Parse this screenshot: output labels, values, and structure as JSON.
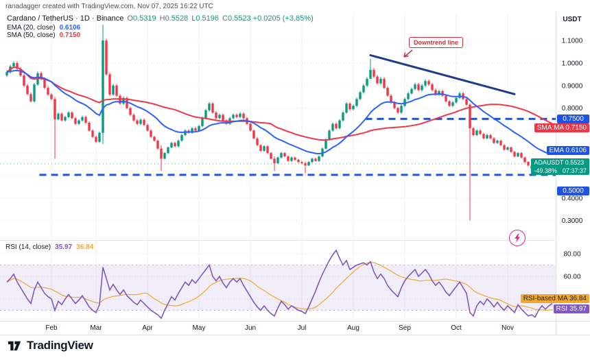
{
  "attribution": "ranadagger created with TradingView.com, Nov 07, 2025 16:22 UTC",
  "header": {
    "symbol_line": "Cardano / TetherUS · 1D · Binance",
    "ohlc": {
      "o_label": "O",
      "o": "0.5319",
      "h_label": "H",
      "h": "0.5528",
      "l_label": "L",
      "l": "0.5196",
      "c_label": "C",
      "c": "0.5523",
      "change": "+0.0205 (+3.85%)"
    }
  },
  "legends": {
    "ema": {
      "label": "EMA (20, close)",
      "value": "0.6106"
    },
    "sma": {
      "label": "SMA (50, close)",
      "value": "0.7150"
    },
    "rsi": {
      "label": "RSI (14, close)",
      "value": "35.97",
      "ma_value": "36.84"
    }
  },
  "badges": {
    "price_upper": "0.7500",
    "sma_badge": {
      "label": "SMA:MA",
      "value": "0.7150"
    },
    "ema_badge": {
      "label": "EMA",
      "value": "0.6106"
    },
    "symbol_badge": {
      "label": "ADAUSDT",
      "value": "0.5523",
      "change": "-49.38%",
      "countdown": "07:37:37"
    },
    "price_lower": "0.5000",
    "rsi_ma_badge": {
      "label": "RSI-based MA",
      "value": "36.84"
    },
    "rsi_badge": {
      "label": "RSI",
      "value": "35.97"
    }
  },
  "annotations": {
    "downtrend_label": "Downtrend line"
  },
  "footer": {
    "logo_text": "TradingView"
  },
  "chart_data": {
    "type": "candlestick",
    "symbol": "ADAUSDT",
    "interval": "1D",
    "exchange": "Binance",
    "colors": {
      "up": "#089981",
      "down": "#f23645",
      "ema": "#2962ff",
      "sma": "#f23645",
      "trendline": "#1e3a8a",
      "level": "#1e53e5",
      "rsi": "#7e57c2",
      "rsi_ma": "#f0a82e",
      "rsi_band": "rgba(126,87,194,0.10)",
      "grid_v": "#eef0f5",
      "grid_h": "#c5c9d3"
    },
    "x_axis": {
      "ticks": [
        {
          "i": 13,
          "label": "Feb"
        },
        {
          "i": 26,
          "label": "Mar"
        },
        {
          "i": 41,
          "label": "Apr"
        },
        {
          "i": 56,
          "label": "May"
        },
        {
          "i": 71,
          "label": "Jun"
        },
        {
          "i": 86,
          "label": "Jul"
        },
        {
          "i": 101,
          "label": "Aug"
        },
        {
          "i": 116,
          "label": "Sep"
        },
        {
          "i": 131,
          "label": "Oct"
        },
        {
          "i": 146,
          "label": "Nov"
        }
      ]
    },
    "y_axis": {
      "currency": "USDT",
      "range": [
        0.235,
        1.225
      ],
      "grid": [
        1.1,
        1.0,
        0.9,
        0.8,
        0.7,
        0.6,
        0.5,
        0.4,
        0.3
      ],
      "ticks": [
        {
          "v": 1.1,
          "label": "1.1000"
        },
        {
          "v": 1.0,
          "label": "1.0000"
        },
        {
          "v": 0.9,
          "label": "0.9000"
        },
        {
          "v": 0.8,
          "label": "0.8000"
        },
        {
          "v": 0.4,
          "label": "0.4000"
        },
        {
          "v": 0.3,
          "label": "0.3000"
        }
      ]
    },
    "rsi_axis": {
      "range": [
        15,
        90
      ],
      "band": [
        30,
        70
      ],
      "ticks": [
        {
          "v": 80,
          "label": "80.00"
        },
        {
          "v": 60,
          "label": "60.00"
        },
        {
          "v": 40,
          "label": "40.00"
        }
      ]
    },
    "candles": {
      "first_open": 0.945,
      "closes": [
        0.96,
        0.985,
        1.0,
        0.975,
        0.945,
        0.9,
        0.862,
        0.83,
        0.905,
        0.955,
        0.93,
        0.89,
        0.86,
        0.84,
        0.75,
        0.775,
        0.745,
        0.76,
        0.78,
        0.755,
        0.73,
        0.745,
        0.76,
        0.735,
        0.7,
        0.672,
        0.65,
        0.69,
        1.1,
        0.95,
        0.86,
        0.9,
        0.855,
        0.82,
        0.845,
        0.8,
        0.77,
        0.745,
        0.73,
        0.748,
        0.725,
        0.7,
        0.672,
        0.655,
        0.62,
        0.575,
        0.6,
        0.625,
        0.645,
        0.63,
        0.655,
        0.68,
        0.7,
        0.69,
        0.71,
        0.7,
        0.72,
        0.755,
        0.79,
        0.82,
        0.78,
        0.755,
        0.77,
        0.745,
        0.73,
        0.755,
        0.77,
        0.76,
        0.775,
        0.755,
        0.73,
        0.7,
        0.665,
        0.635,
        0.61,
        0.63,
        0.6,
        0.575,
        0.555,
        0.58,
        0.6,
        0.585,
        0.565,
        0.58,
        0.57,
        0.56,
        0.555,
        0.545,
        0.56,
        0.575,
        0.565,
        0.585,
        0.62,
        0.66,
        0.7,
        0.73,
        0.71,
        0.745,
        0.78,
        0.82,
        0.795,
        0.81,
        0.84,
        0.87,
        0.9,
        0.93,
        0.97,
        0.94,
        0.91,
        0.93,
        0.89,
        0.855,
        0.825,
        0.8,
        0.78,
        0.81,
        0.84,
        0.865,
        0.885,
        0.905,
        0.88,
        0.9,
        0.92,
        0.905,
        0.88,
        0.86,
        0.875,
        0.855,
        0.83,
        0.81,
        0.825,
        0.845,
        0.865,
        0.84,
        0.815,
        0.71,
        0.68,
        0.7,
        0.685,
        0.665,
        0.68,
        0.665,
        0.645,
        0.655,
        0.635,
        0.615,
        0.625,
        0.605,
        0.585,
        0.6,
        0.58,
        0.56,
        0.545,
        0.53,
        0.515,
        0.528,
        0.54,
        0.532,
        0.545,
        0.5523
      ],
      "wick_overrides": {
        "14": [
          0.575,
          0.85
        ],
        "28": [
          0.64,
          1.17
        ],
        "45": [
          0.52,
          0.635
        ],
        "78": [
          0.52,
          0.585
        ],
        "87": [
          0.51,
          0.562
        ],
        "106": [
          0.932,
          1.02
        ],
        "135": [
          0.3,
          0.82
        ],
        "154": [
          0.5,
          0.535
        ]
      }
    },
    "last_price": 0.5523,
    "indicators": {
      "ema": {
        "period": 20,
        "last": 0.6106
      },
      "sma": {
        "period": 50,
        "last": 0.715
      }
    },
    "rsi": {
      "period": 14,
      "ma_period": 14,
      "last": 35.97,
      "ma_last": 36.84,
      "values": [
        55,
        58,
        62,
        55,
        50,
        45,
        40,
        36,
        48,
        55,
        50,
        45,
        42,
        40,
        30,
        38,
        35,
        40,
        44,
        40,
        36,
        39,
        43,
        38,
        33,
        30,
        28,
        35,
        68,
        58,
        48,
        53,
        48,
        44,
        48,
        43,
        40,
        37,
        35,
        39,
        36,
        33,
        30,
        28,
        26,
        23,
        30,
        36,
        42,
        39,
        45,
        50,
        55,
        52,
        57,
        54,
        58,
        62,
        66,
        70,
        60,
        56,
        60,
        54,
        50,
        55,
        58,
        55,
        58,
        52,
        47,
        42,
        37,
        33,
        30,
        34,
        30,
        27,
        25,
        32,
        38,
        35,
        31,
        34,
        32,
        30,
        29,
        27,
        33,
        40,
        47,
        55,
        62,
        68,
        74,
        79,
        83,
        76,
        70,
        74,
        66,
        68,
        70,
        71,
        72,
        70,
        73,
        64,
        58,
        62,
        58,
        52,
        48,
        45,
        42,
        50,
        56,
        60,
        63,
        66,
        60,
        63,
        66,
        62,
        56,
        52,
        55,
        51,
        46,
        43,
        47,
        51,
        55,
        50,
        45,
        28,
        25,
        34,
        38,
        35,
        40,
        37,
        33,
        37,
        33,
        30,
        34,
        31,
        28,
        35,
        31,
        28,
        25,
        26,
        24,
        30,
        34,
        31,
        34,
        35.97
      ]
    },
    "levels": [
      {
        "price": 0.752,
        "i_from": 104.5,
        "i_to": 161
      },
      {
        "price": 0.503,
        "i_from": 9.5,
        "i_to": 161
      }
    ],
    "trendline": {
      "i1": 106,
      "p1": 1.035,
      "i2": 148,
      "p2": 0.862,
      "label": "Downtrend line"
    }
  }
}
